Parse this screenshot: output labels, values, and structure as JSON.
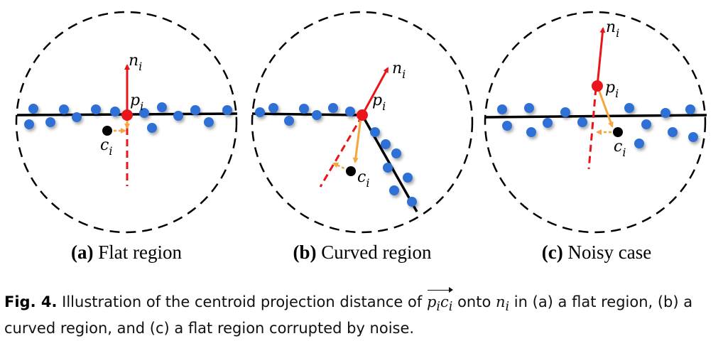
{
  "panels": [
    {
      "letter": "(a)",
      "label": "Flat region"
    },
    {
      "letter": "(b)",
      "label": "Curved region"
    },
    {
      "letter": "(c)",
      "label": "Noisy case"
    }
  ],
  "symbols": {
    "normal": "n",
    "normal_sub": "i",
    "point": "p",
    "point_sub": "i",
    "centroid": "c",
    "centroid_sub": "i"
  },
  "caption": {
    "fig_label": "Fig. 4.",
    "text_before": " Illustration of the centroid projection distance of ",
    "vector": "p",
    "vector_sub": "i",
    "vector2": "c",
    "vector2_sub": "i",
    "text_onto": " onto ",
    "normal": "n",
    "normal_sub": "i",
    "text_after": " in (a) a flat region, (b) a curved region, and (c) a flat region corrupted by noise."
  },
  "colors": {
    "dot": "#2f6fd6",
    "point": "#e8161b",
    "normal": "#e8161b",
    "projection": "#f5a63c",
    "centroid": "#000000",
    "surface": "#000000"
  }
}
